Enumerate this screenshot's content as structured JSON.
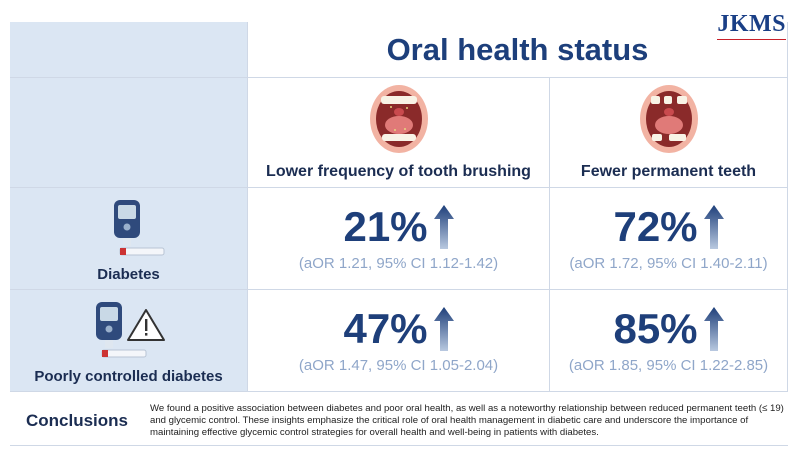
{
  "logo": "JKMS",
  "title": "Oral health status",
  "columns": [
    {
      "label": "Lower frequency of tooth brushing"
    },
    {
      "label": "Fewer permanent teeth"
    }
  ],
  "rows": [
    {
      "label": "Diabetes",
      "cells": [
        {
          "value": "21%",
          "ci": "(aOR 1.21, 95% CI 1.12-1.42)"
        },
        {
          "value": "72%",
          "ci": "(aOR 1.72, 95% CI 1.40-2.11)"
        }
      ]
    },
    {
      "label": "Poorly controlled diabetes",
      "cells": [
        {
          "value": "47%",
          "ci": "(aOR 1.47, 95% CI 1.05-2.04)"
        },
        {
          "value": "85%",
          "ci": "(aOR 1.85, 95% CI 1.22-2.85)"
        }
      ]
    }
  ],
  "conclusions": {
    "label": "Conclusions",
    "text": "We found a positive association between diabetes and poor oral health, as well as a noteworthy relationship between reduced permanent teeth (≤ 19) and glycemic control. These insights emphasize the critical role of oral health management in diabetic care and underscore the importance of maintaining effective glycemic control strategies for overall health and well-being in patients with diabetes."
  },
  "colors": {
    "title": "#1d3f7b",
    "ci": "#8fa6c9",
    "left_panel": "#dbe6f3"
  }
}
